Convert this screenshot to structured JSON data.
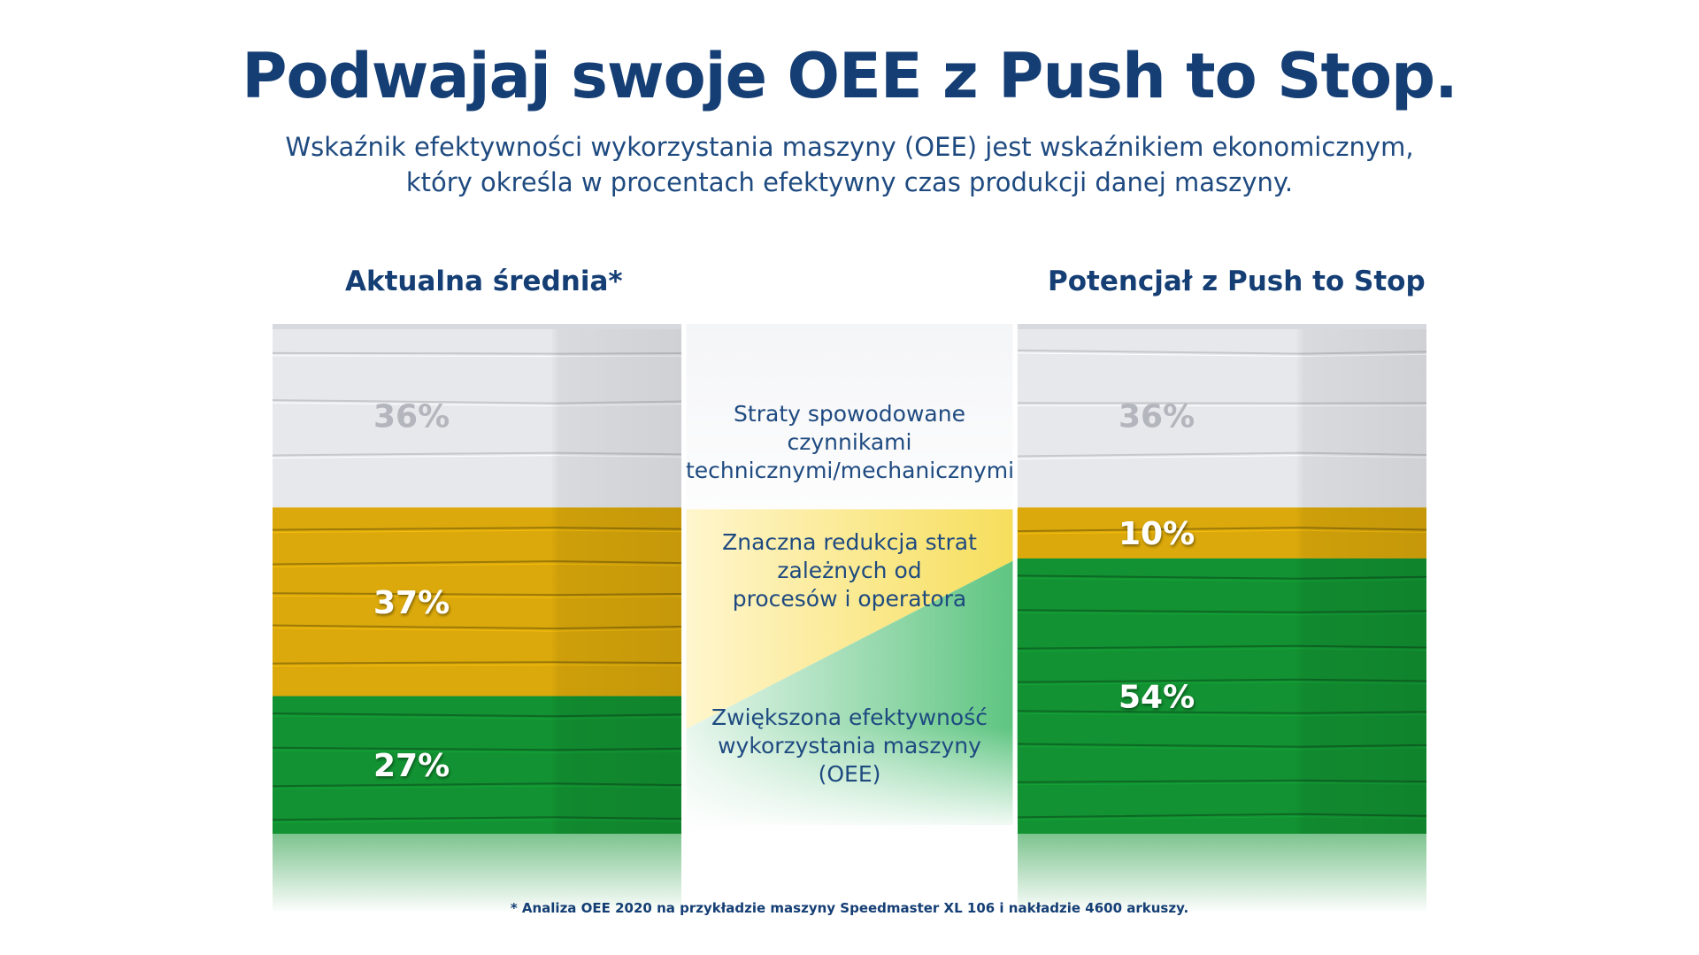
{
  "title": "Podwajaj swoje OEE z Push to Stop.",
  "subtitle": {
    "line1": "Wskaźnik efektywności wykorzystania maszyny (OEE) jest wskaźnikiem ekonomicznym,",
    "line2": "który określa w procentach efektywny czas produkcji danej maszyny."
  },
  "middle_labels": {
    "technical": [
      "Straty spowodowane",
      "czynnikami",
      "technicznymi/mechanicznymi"
    ],
    "process": [
      "Znaczna redukcja strat",
      "zależnych od",
      "procesów i operatora"
    ],
    "oee": [
      "Zwiększona efektywność",
      "wykorzystania maszyny (OEE)"
    ]
  },
  "footnote": "* Analiza OEE 2020 na przykładzie maszyny Speedmaster XL 106 i nakładzie 4600 arkuszy.",
  "colors": {
    "title": "#143e74",
    "white_sheets": "#e7e8ec",
    "yellow_sheets": "#dba90b",
    "green_sheets": "#129232",
    "band_yellow": "#f6de5a",
    "band_green": "#5cc47f"
  },
  "chart_data": {
    "type": "bar",
    "stacked": true,
    "categories": [
      "Aktualna średnia*",
      "Potencjał z Push to Stop"
    ],
    "segment_order": [
      "technical",
      "process",
      "oee"
    ],
    "series": [
      {
        "key": "technical",
        "values": [
          36,
          36
        ],
        "labels": [
          "36%",
          "36%"
        ],
        "color": "#e7e8ec",
        "label_color": "#b4b6bd"
      },
      {
        "key": "process",
        "values": [
          37,
          10
        ],
        "labels": [
          "37%",
          "10%"
        ],
        "color": "#dba90b",
        "label_color": "#ffffff"
      },
      {
        "key": "oee",
        "values": [
          27,
          54
        ],
        "labels": [
          "27%",
          "54%"
        ],
        "color": "#129232",
        "label_color": "#ffffff"
      }
    ],
    "ylim": [
      0,
      100
    ]
  }
}
